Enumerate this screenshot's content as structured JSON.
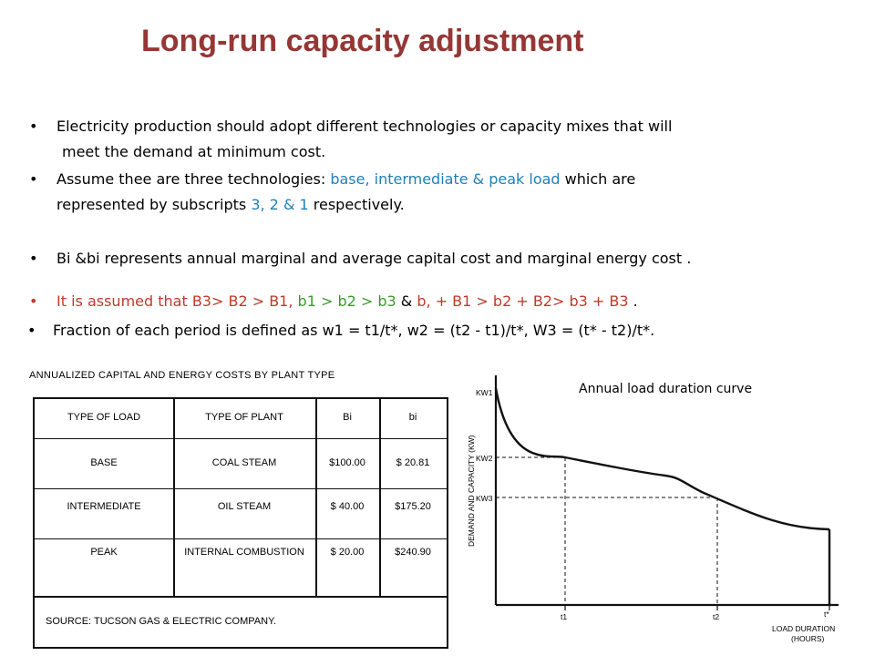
{
  "title": "Long-run capacity adjustment",
  "bullets": {
    "b1_line1": "Electricity production should adopt different technologies or capacity  mixes that will",
    "b1_line2": "meet the demand at minimum cost.",
    "b2_line1_a": "Assume thee are three technologies: ",
    "b2_line1_b": "base, intermediate & peak load",
    "b2_line1_c": " which are",
    "b2_line2_a": "represented by subscripts ",
    "b2_line2_b": "3, 2 & 1",
    "b2_line2_c": " respectively.",
    "b3": "Bi &bi represents annual marginal and average capital cost and  marginal energy cost .",
    "b4_a": "It is assumed that B3> B2 > B1, ",
    "b4_b": "b1 > b2 > b3",
    "b4_c": " & ",
    "b4_d": " b, + B1 > b2 + B2> b3 + B3",
    "b4_e": " .",
    "b5": "Fraction of each period is defined as w1 = t1/t*, w2 = (t2 - t1)/t*, W3 = (t* - t2)/t*.",
    "bullet_char": "•"
  },
  "cost_table": {
    "title": "ANNUALIZED CAPITAL AND ENERGY COSTS BY PLANT TYPE",
    "headers": [
      "TYPE OF LOAD",
      "TYPE OF PLANT",
      "Bi",
      "bi"
    ],
    "rows": [
      {
        "load": "BASE",
        "plant": "COAL STEAM",
        "B": "$100.00",
        "b": "$ 20.81"
      },
      {
        "load": "INTERMEDIATE",
        "plant": "OIL STEAM",
        "B": "$ 40.00",
        "b": "$175.20"
      },
      {
        "load": "PEAK",
        "plant": "INTERNAL COMBUSTION",
        "B": "$ 20.00",
        "b": "$240.90"
      }
    ],
    "source": "SOURCE:  TUCSON GAS & ELECTRIC COMPANY."
  },
  "chart_data": {
    "type": "line",
    "title": "Annual load duration curve",
    "ylabel": "DEMAND AND CAPACITY (KW)",
    "xlabel_line1": "LOAD DURATION",
    "xlabel_line2": "(HOURS)",
    "y_ticks": [
      "KW1",
      "KW2",
      "KW3"
    ],
    "x_ticks": [
      "t1",
      "t2",
      "t*"
    ]
  }
}
